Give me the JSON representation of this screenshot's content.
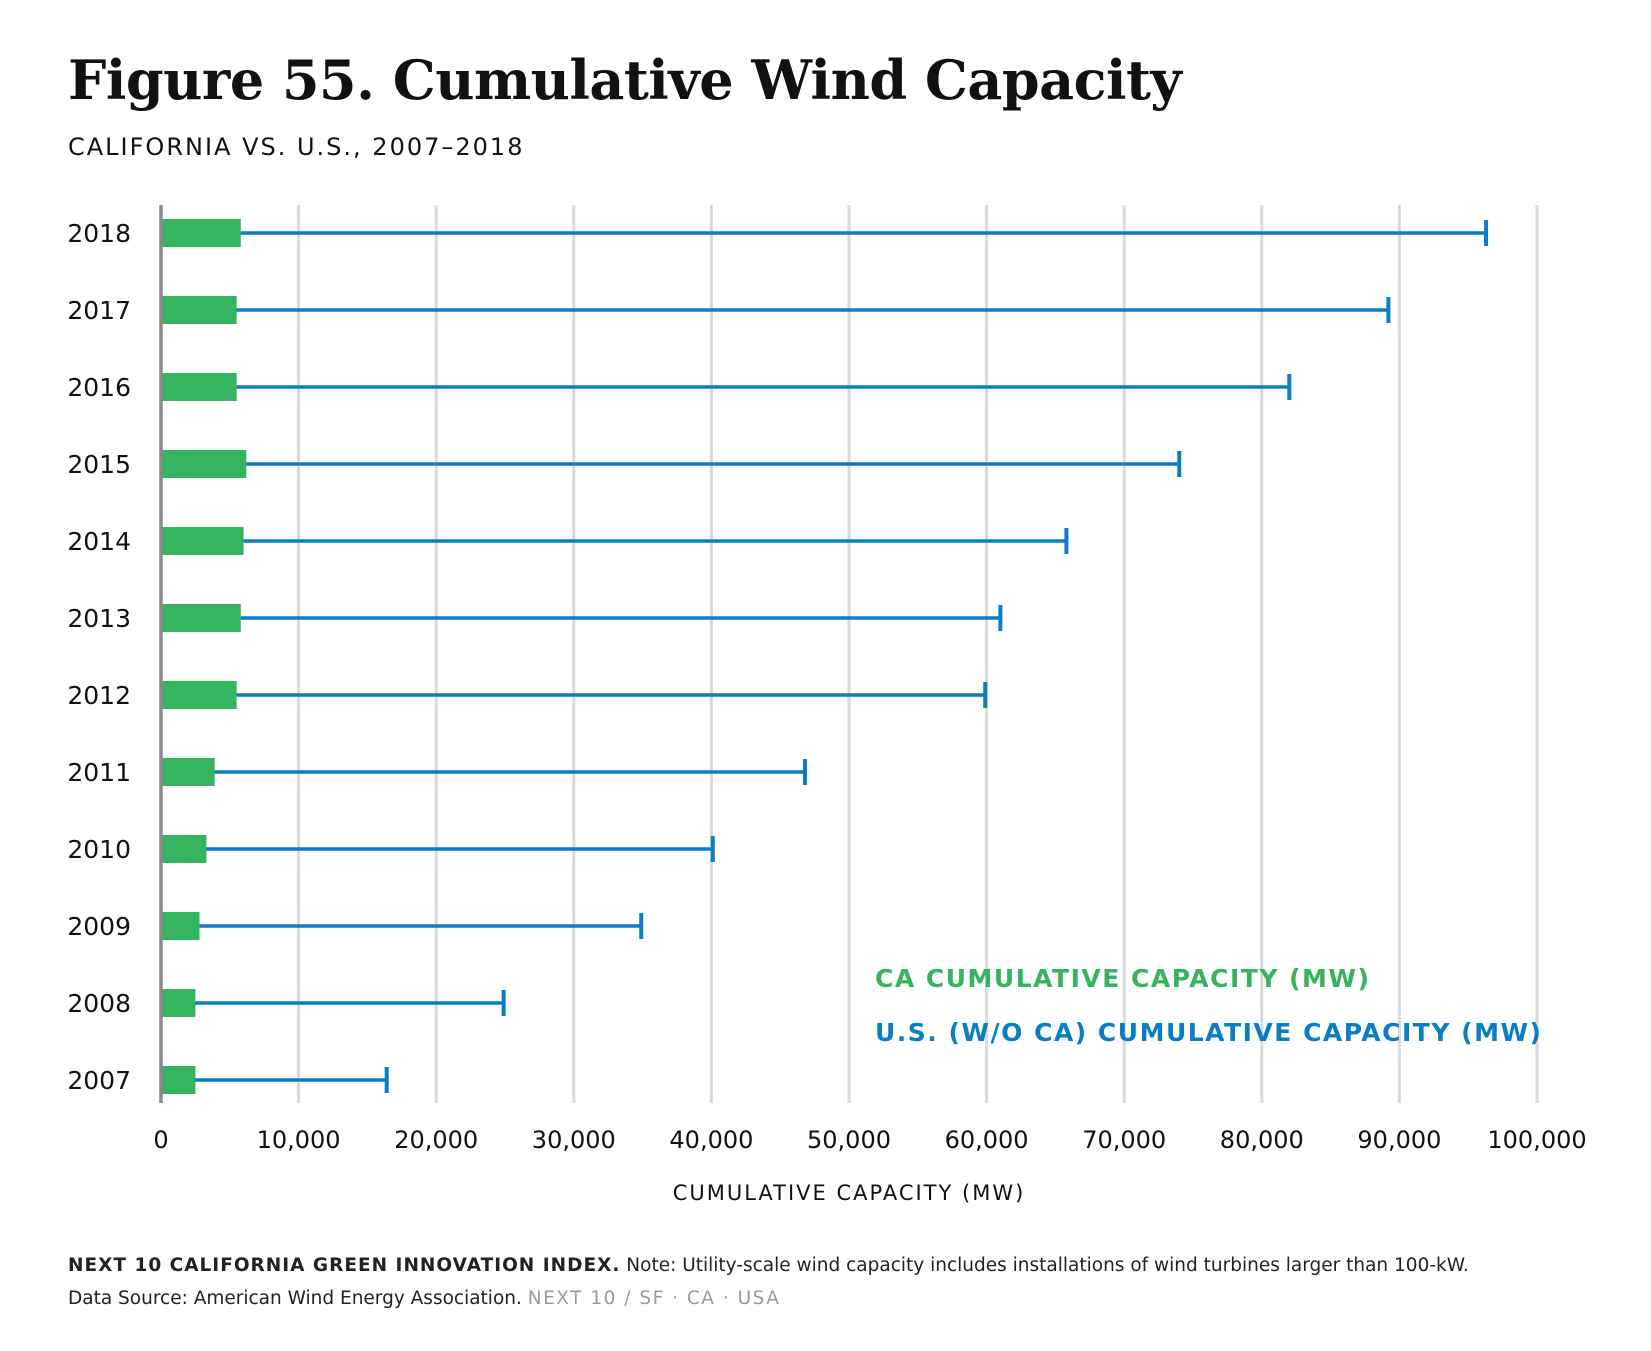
{
  "title": "Figure 55. Cumulative Wind Capacity",
  "subtitle": "CALIFORNIA VS. U.S., 2007–2018",
  "chart_data": {
    "type": "bar",
    "orientation": "horizontal",
    "categories": [
      "2018",
      "2017",
      "2016",
      "2015",
      "2014",
      "2013",
      "2012",
      "2011",
      "2010",
      "2009",
      "2008",
      "2007"
    ],
    "series": [
      {
        "name": "CA CUMULATIVE CAPACITY (MW)",
        "color": "#34b45e",
        "values": [
          5800,
          5500,
          5500,
          6200,
          6000,
          5800,
          5500,
          3900,
          3300,
          2800,
          2500,
          2500
        ]
      },
      {
        "name": "U.S. (W/O CA) CUMULATIVE CAPACITY (MW)",
        "color": "#0a7ec4",
        "values": [
          96300,
          89200,
          82000,
          74000,
          65800,
          61000,
          59900,
          46800,
          40100,
          34900,
          24900,
          16400
        ]
      }
    ],
    "xlim": [
      0,
      100000
    ],
    "xticks": [
      "0",
      "10,000",
      "20,000",
      "30,000",
      "40,000",
      "50,000",
      "60,000",
      "70,000",
      "80,000",
      "90,000",
      "100,000"
    ],
    "xlabel": "CUMULATIVE CAPACITY (MW)",
    "grid": true,
    "legend_position": "bottom-right"
  },
  "footer": {
    "org": "NEXT 10 CALIFORNIA GREEN INNOVATION INDEX.",
    "note": "Note: Utility-scale wind capacity includes installations of wind turbines larger than 100-kW.",
    "source": "Data Source: American Wind Energy Association.",
    "brand": "NEXT 10  /  SF · CA · USA"
  }
}
